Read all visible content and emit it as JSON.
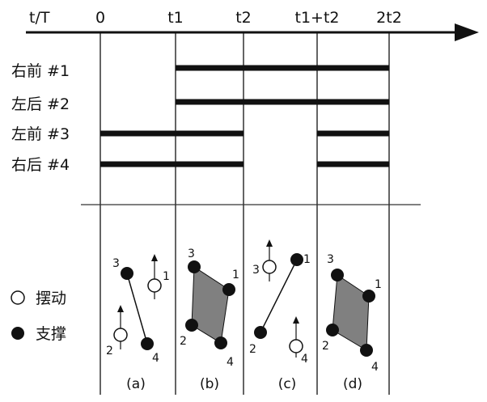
{
  "axis": {
    "label": "t/T",
    "ticks": [
      "0",
      "t1",
      "t2",
      "t1+t2",
      "2t2"
    ]
  },
  "rows": [
    {
      "id": "rf",
      "label": "右前 #1"
    },
    {
      "id": "lh",
      "label": "左后 #2"
    },
    {
      "id": "lf",
      "label": "左前 #3"
    },
    {
      "id": "rh",
      "label": "右后 #4"
    }
  ],
  "legend": {
    "swing": "摆动",
    "support": "支撑"
  },
  "panels": [
    {
      "label": "(a)"
    },
    {
      "label": "(b)"
    },
    {
      "label": "(c)"
    },
    {
      "label": "(d)"
    }
  ],
  "leg_numbers": [
    "1",
    "2",
    "3",
    "4"
  ],
  "colors": {
    "line": "#111111",
    "support_polygon": "#808080",
    "swing_fill": "#ffffff",
    "support_fill": "#111111"
  }
}
